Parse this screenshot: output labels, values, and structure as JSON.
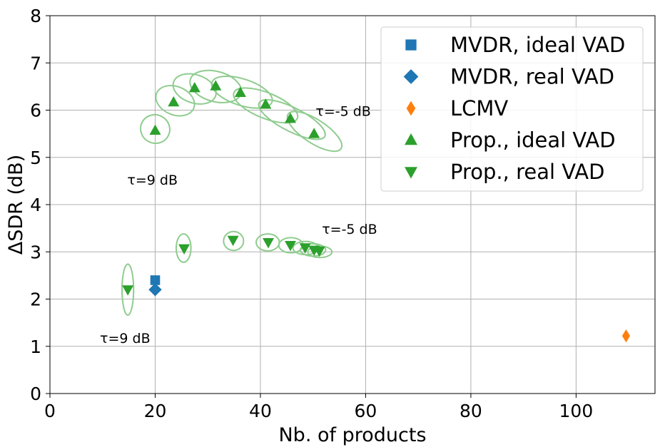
{
  "chart_data": {
    "type": "scatter",
    "xlabel": "Nb. of products",
    "ylabel": "ΔSDR (dB)",
    "xlim": [
      0,
      115
    ],
    "ylim": [
      0,
      8
    ],
    "xticks": [
      0,
      20,
      40,
      60,
      80,
      100
    ],
    "yticks": [
      0,
      1,
      2,
      3,
      4,
      5,
      6,
      7,
      8
    ],
    "grid": true,
    "legend_position": "top-right",
    "series": [
      {
        "name": "MVDR, ideal VAD",
        "marker": "square",
        "color": "#1f77b4",
        "points": [
          {
            "x": 20,
            "y": 2.4
          }
        ]
      },
      {
        "name": "MVDR, real VAD",
        "marker": "diamond",
        "color": "#1f77b4",
        "points": [
          {
            "x": 20,
            "y": 2.2
          }
        ]
      },
      {
        "name": "LCMV",
        "marker": "thin-diamond",
        "color": "#ff7f0e",
        "points": [
          {
            "x": 109.5,
            "y": 1.22
          }
        ]
      },
      {
        "name": "Prop., ideal VAD",
        "marker": "triangle-up",
        "color": "#2ca02c",
        "points": [
          {
            "x": 20,
            "y": 5.57
          },
          {
            "x": 23.5,
            "y": 6.17
          },
          {
            "x": 27.5,
            "y": 6.47
          },
          {
            "x": 31.5,
            "y": 6.51
          },
          {
            "x": 36.2,
            "y": 6.37
          },
          {
            "x": 41,
            "y": 6.12
          },
          {
            "x": 45.7,
            "y": 5.82
          },
          {
            "x": 50.2,
            "y": 5.5
          }
        ],
        "ellipses": [
          {
            "cx": 20,
            "cy": 5.6,
            "rx": 2.8,
            "ry": 0.3,
            "angle": 28
          },
          {
            "cx": 23.8,
            "cy": 6.2,
            "rx": 3.8,
            "ry": 0.3,
            "angle": 22
          },
          {
            "cx": 27.5,
            "cy": 6.45,
            "rx": 4.2,
            "ry": 0.3,
            "angle": 18
          },
          {
            "cx": 31.5,
            "cy": 6.5,
            "rx": 5.0,
            "ry": 0.32,
            "angle": 15
          },
          {
            "cx": 36.5,
            "cy": 6.38,
            "rx": 6.0,
            "ry": 0.28,
            "angle": 18
          },
          {
            "cx": 41,
            "cy": 6.1,
            "rx": 6.5,
            "ry": 0.27,
            "angle": 22
          },
          {
            "cx": 46,
            "cy": 5.8,
            "rx": 7.0,
            "ry": 0.25,
            "angle": 27
          },
          {
            "cx": 50.3,
            "cy": 5.55,
            "rx": 6.0,
            "ry": 0.25,
            "angle": 33
          }
        ]
      },
      {
        "name": "Prop., real VAD",
        "marker": "triangle-down",
        "color": "#2ca02c",
        "points": [
          {
            "x": 14.8,
            "y": 2.2
          },
          {
            "x": 25.5,
            "y": 3.07
          },
          {
            "x": 34.8,
            "y": 3.25
          },
          {
            "x": 41.5,
            "y": 3.2
          },
          {
            "x": 45.7,
            "y": 3.14
          },
          {
            "x": 48.5,
            "y": 3.09
          },
          {
            "x": 50.2,
            "y": 3.04
          },
          {
            "x": 51.2,
            "y": 3.02
          }
        ],
        "ellipses": [
          {
            "cx": 14.8,
            "cy": 2.2,
            "rx": 1.1,
            "ry": 0.54,
            "angle": 0
          },
          {
            "cx": 25.4,
            "cy": 3.08,
            "rx": 1.4,
            "ry": 0.3,
            "angle": 0
          },
          {
            "cx": 34.9,
            "cy": 3.23,
            "rx": 1.9,
            "ry": 0.2,
            "angle": 0
          },
          {
            "cx": 41.4,
            "cy": 3.2,
            "rx": 2.2,
            "ry": 0.18,
            "angle": 0
          },
          {
            "cx": 45.8,
            "cy": 3.14,
            "rx": 2.3,
            "ry": 0.16,
            "angle": 0
          },
          {
            "cx": 48.6,
            "cy": 3.08,
            "rx": 2.4,
            "ry": 0.14,
            "angle": 0
          },
          {
            "cx": 50.0,
            "cy": 3.04,
            "rx": 2.4,
            "ry": 0.13,
            "angle": 0
          },
          {
            "cx": 51.3,
            "cy": 3.0,
            "rx": 2.3,
            "ry": 0.12,
            "angle": 0
          }
        ]
      }
    ],
    "annotations": [
      {
        "text": "τ=9 dB",
        "x": 14.7,
        "y": 4.42
      },
      {
        "text": "τ=-5 dB",
        "x": 50.5,
        "y": 5.88
      },
      {
        "text": "τ=9 dB",
        "x": 9.5,
        "y": 1.07
      },
      {
        "text": "τ=-5 dB",
        "x": 51.7,
        "y": 3.38
      }
    ]
  }
}
